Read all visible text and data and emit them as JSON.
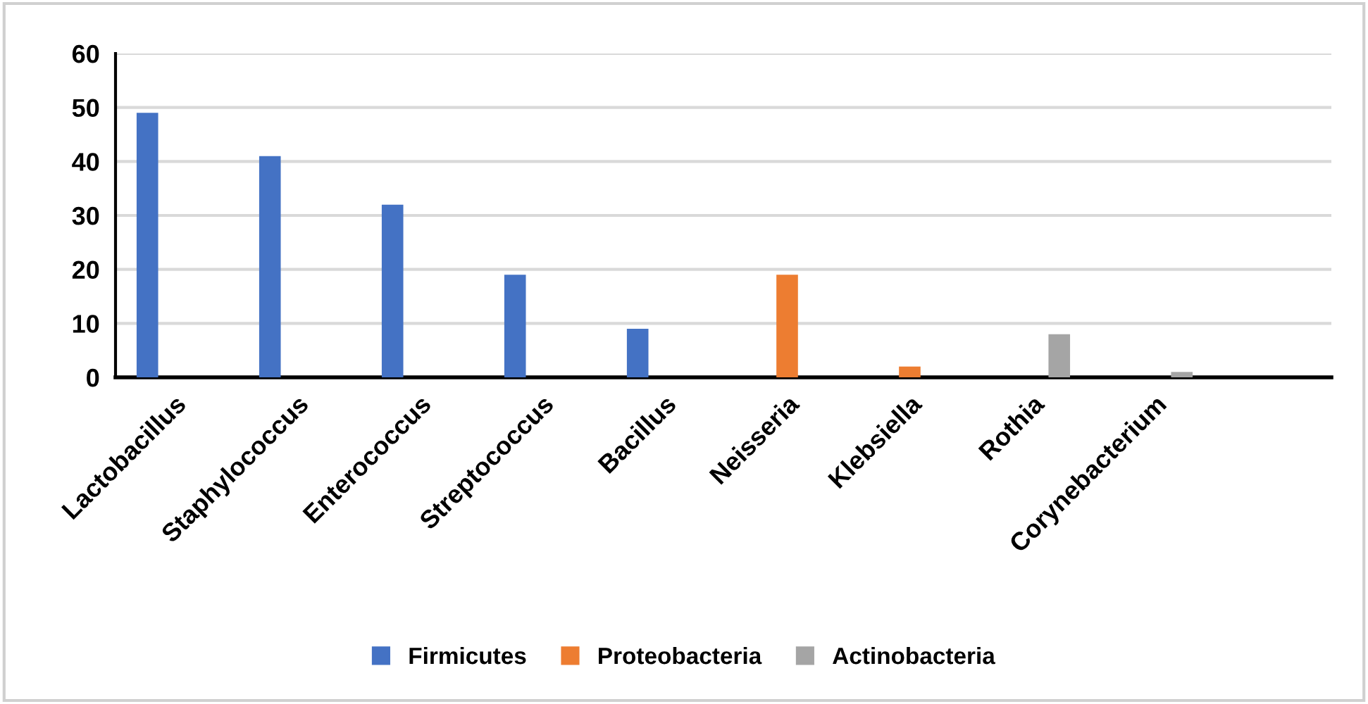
{
  "chart_data": {
    "type": "bar",
    "categories": [
      "Lactobacillus",
      "Staphylococcus",
      "Enterococcus",
      "Streptococcus",
      "Bacillus",
      "Neisseria",
      "Klebsiella",
      "Rothia",
      "Corynebacterium"
    ],
    "series": [
      {
        "name": "Firmicutes",
        "color": "#4472c4",
        "values": [
          49,
          41,
          32,
          19,
          9,
          null,
          null,
          null,
          null
        ]
      },
      {
        "name": "Proteobacteria",
        "color": "#ed7d31",
        "values": [
          null,
          null,
          null,
          null,
          null,
          19,
          2,
          null,
          null
        ]
      },
      {
        "name": "Actinobacteria",
        "color": "#a5a5a5",
        "values": [
          null,
          null,
          null,
          null,
          null,
          null,
          null,
          8,
          1
        ]
      }
    ],
    "ylim": [
      0,
      60
    ],
    "yticks": [
      0,
      10,
      20,
      30,
      40,
      50,
      60
    ],
    "grid": "y",
    "legend": "bottom"
  }
}
